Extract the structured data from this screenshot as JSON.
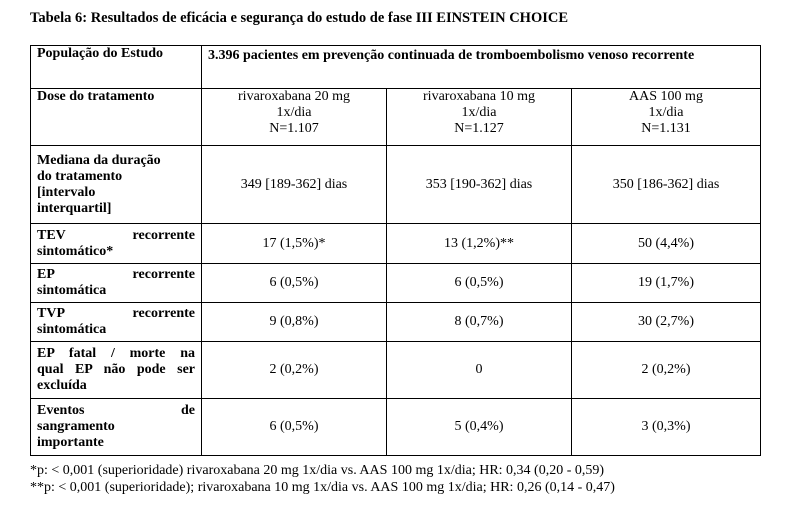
{
  "caption": "Tabela 6: Resultados de eficácia e segurança do estudo de fase III EINSTEIN CHOICE",
  "table": {
    "population_label": "População do Estudo",
    "population_value": "3.396 pacientes em prevenção continuada de tromboembolismo venoso recorrente",
    "dose_label": "Dose do tratamento",
    "arms": [
      {
        "drug": "rivaroxabana 20 mg",
        "freq": "1x/dia",
        "n": "N=1.107"
      },
      {
        "drug": "rivaroxabana 10 mg",
        "freq": "1x/dia",
        "n": "N=1.127"
      },
      {
        "drug": "AAS 100 mg",
        "freq": "1x/dia",
        "n": "N=1.131"
      }
    ],
    "rows": [
      {
        "label_lines": [
          "Mediana da duração",
          "do tratamento",
          "[intervalo",
          "interquartil]"
        ],
        "values": [
          "349 [189-362] dias",
          "353 [190-362] dias",
          "350 [186-362] dias"
        ]
      },
      {
        "label_lines": [
          "TEV recorrente",
          "sintomático*"
        ],
        "values": [
          "17 (1,5%)*",
          "13 (1,2%)**",
          "50 (4,4%)"
        ]
      },
      {
        "label_lines": [
          "EP recorrente",
          "sintomática"
        ],
        "values": [
          "6 (0,5%)",
          "6 (0,5%)",
          "19 (1,7%)"
        ]
      },
      {
        "label_lines": [
          "TVP recorrente",
          "sintomática"
        ],
        "values": [
          "9 (0,8%)",
          "8 (0,7%)",
          "30 (2,7%)"
        ]
      },
      {
        "label_lines": [
          "EP fatal / morte na",
          "qual EP não pode ser",
          "excluída"
        ],
        "values": [
          "2 (0,2%)",
          "0",
          "2 (0,2%)"
        ]
      },
      {
        "label_lines": [
          "Eventos de",
          "sangramento",
          "importante"
        ],
        "values": [
          "6 (0,5%)",
          "5 (0,4%)",
          "3 (0,3%)"
        ]
      }
    ]
  },
  "footnotes": [
    "*p: < 0,001 (superioridade) rivaroxabana 20 mg 1x/dia vs. AAS 100 mg 1x/dia; HR: 0,34 (0,20 - 0,59)",
    "**p: < 0,001 (superioridade); rivaroxabana 10 mg 1x/dia vs. AAS 100 mg 1x/dia; HR: 0,26 (0,14 - 0,47)"
  ]
}
